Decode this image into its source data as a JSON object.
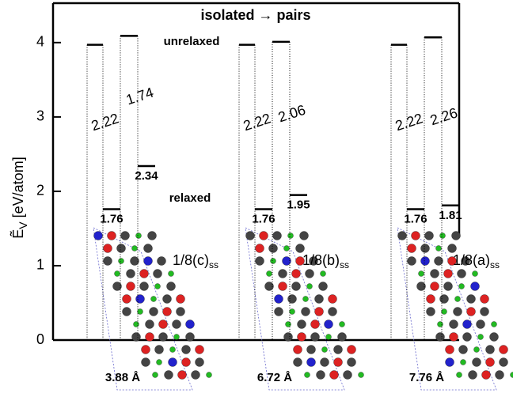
{
  "chart_data": {
    "type": "energy-levels",
    "title": "isolated → pairs",
    "y_label": "Ẽ",
    "y_label_sub": "V",
    "y_label_rest": " [eV/atom]",
    "ylim": [
      0,
      4.53
    ],
    "yticks": [
      0,
      1,
      2,
      3,
      4
    ],
    "annotations": [
      "unrelaxed",
      "relaxed"
    ],
    "groups": [
      {
        "label": "1/8(c)",
        "label_sub": "ss",
        "distance": "3.88 Å",
        "isolated": [
          3.97,
          4.09
        ],
        "relaxed": [
          1.76,
          2.34
        ],
        "drops": [
          2.22,
          1.74
        ]
      },
      {
        "label": "1/8(b)",
        "label_sub": "ss",
        "distance": "6.72 Å",
        "isolated": [
          3.97,
          4.01
        ],
        "relaxed": [
          1.76,
          1.95
        ],
        "drops": [
          2.22,
          2.06
        ]
      },
      {
        "label": "1/8(a)",
        "label_sub": "ss",
        "distance": "7.76 Å",
        "isolated": [
          3.97,
          4.07
        ],
        "relaxed": [
          1.76,
          1.81
        ],
        "drops": [
          2.22,
          2.26
        ]
      }
    ]
  }
}
